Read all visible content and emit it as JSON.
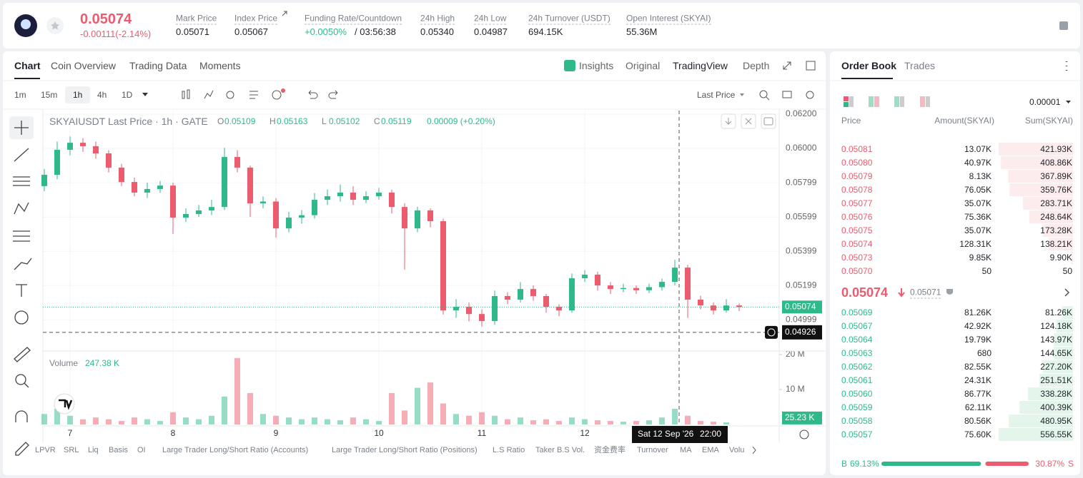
{
  "header": {
    "price": "0.05074",
    "change": "-0.00111(-2.14%)",
    "stats": [
      {
        "label": "Mark Price",
        "value": "0.05071"
      },
      {
        "label": "Index Price",
        "value": "0.05067"
      },
      {
        "label": "Funding Rate/Countdown",
        "value": "+0.0050%",
        "extra": "/ 03:56:38"
      },
      {
        "label": "24h High",
        "value": "0.05340"
      },
      {
        "label": "24h Low",
        "value": "0.04987"
      },
      {
        "label": "24h Turnover (USDT)",
        "value": "694.15K"
      },
      {
        "label": "Open Interest (SKYAI)",
        "value": "55.36M"
      }
    ]
  },
  "chart_tabs": [
    "Chart",
    "Coin Overview",
    "Trading Data",
    "Moments"
  ],
  "view_tabs": [
    "Insights",
    "Original",
    "TradingView",
    "Depth"
  ],
  "intervals": [
    "1m",
    "15m",
    "1h",
    "4h",
    "1D"
  ],
  "price_source": "Last Price",
  "chart_data": {
    "type": "candlestick",
    "title": "SKYAIUSDT Last Price · 1h · GATE",
    "legend": [
      {
        "key": "O",
        "value": "0.05109"
      },
      {
        "key": "H",
        "value": "0.05163"
      },
      {
        "key": "L",
        "value": "0.05102"
      },
      {
        "key": "C",
        "value": "0.05119"
      }
    ],
    "legend_change": "0.00009 (+0.20%)",
    "x": [
      -6,
      -3,
      0,
      3,
      6,
      9,
      12,
      15,
      18,
      21,
      24,
      27,
      30,
      33,
      36,
      39,
      42,
      45,
      48,
      51,
      54,
      57,
      60,
      63,
      66,
      69,
      72,
      75,
      78,
      81,
      84,
      87,
      90,
      93,
      96,
      99,
      102,
      105,
      108,
      111,
      114,
      117,
      120,
      123,
      126,
      129,
      132,
      135,
      138,
      141,
      144,
      147,
      150,
      153,
      156
    ],
    "open": [
      0.0578,
      0.05846,
      0.05992,
      0.06033,
      0.06013,
      0.05971,
      0.05888,
      0.05804,
      0.05742,
      0.05763,
      0.05783,
      0.05596,
      0.05617,
      0.05638,
      0.05658,
      0.0595,
      0.05888,
      0.05679,
      0.0569,
      0.05533,
      0.05596,
      0.0561,
      0.057,
      0.05721,
      0.05742,
      0.057,
      0.05721,
      0.05742,
      0.05658,
      0.05533,
      0.05638,
      0.05575,
      0.05054,
      0.05075,
      0.05033,
      0.04992,
      0.05138,
      0.05117,
      0.05179,
      0.05138,
      0.05075,
      0.05054,
      0.05242,
      0.05263,
      0.052,
      0.05179,
      0.05185,
      0.05172,
      0.0519,
      0.05221,
      0.05304,
      0.05117,
      0.05083,
      0.05054,
      0.05083
    ],
    "high": [
      0.0588,
      0.0604,
      0.0607,
      0.0606,
      0.0604,
      0.0599,
      0.0591,
      0.0583,
      0.058,
      0.0581,
      0.058,
      0.0565,
      0.0567,
      0.057,
      0.06004,
      0.0599,
      0.059,
      0.0572,
      0.0571,
      0.0563,
      0.0564,
      0.0574,
      0.0576,
      0.0579,
      0.0578,
      0.0575,
      0.0577,
      0.0576,
      0.0568,
      0.0566,
      0.0565,
      0.0559,
      0.0512,
      0.051,
      0.0506,
      0.0517,
      0.0516,
      0.0522,
      0.052,
      0.0515,
      0.0509,
      0.0527,
      0.0529,
      0.0528,
      0.0522,
      0.0521,
      0.052,
      0.0521,
      0.0524,
      0.0535,
      0.0532,
      0.0514,
      0.051,
      0.0512,
      0.05095
    ],
    "low": [
      0.0575,
      0.0582,
      0.0596,
      0.0598,
      0.0594,
      0.0586,
      0.0578,
      0.0572,
      0.0571,
      0.0574,
      0.055,
      0.0557,
      0.056,
      0.0561,
      0.0564,
      0.0586,
      0.056,
      0.0565,
      0.0548,
      0.0551,
      0.0556,
      0.0559,
      0.0567,
      0.0569,
      0.0567,
      0.0568,
      0.057,
      0.0562,
      0.05292,
      0.0551,
      0.0554,
      0.0503,
      0.0501,
      0.0499,
      0.0496,
      0.0497,
      0.0509,
      0.051,
      0.0511,
      0.0504,
      0.0502,
      0.0504,
      0.0522,
      0.0517,
      0.0515,
      0.0516,
      0.0515,
      0.05155,
      0.0517,
      0.052,
      0.0501,
      0.0506,
      0.0503,
      0.0504,
      0.0505
    ],
    "close": [
      0.05846,
      0.05992,
      0.06033,
      0.06013,
      0.05971,
      0.05888,
      0.05804,
      0.05742,
      0.05763,
      0.05783,
      0.05596,
      0.05617,
      0.05638,
      0.05658,
      0.0595,
      0.05888,
      0.05679,
      0.0569,
      0.05533,
      0.05596,
      0.0561,
      0.057,
      0.05721,
      0.05742,
      0.057,
      0.05721,
      0.05742,
      0.05658,
      0.05533,
      0.05638,
      0.05575,
      0.05054,
      0.05075,
      0.05033,
      0.04992,
      0.05138,
      0.05117,
      0.05179,
      0.05138,
      0.05075,
      0.05054,
      0.05242,
      0.05263,
      0.052,
      0.05179,
      0.05185,
      0.05172,
      0.0519,
      0.05221,
      0.05304,
      0.05117,
      0.05083,
      0.05054,
      0.05083,
      0.05074
    ],
    "up_color": "#2fb98b",
    "down_color": "#ec5b6e",
    "xlim": [
      -6.33,
      165.33
    ],
    "xticks": [
      {
        "value": 0,
        "label": "7"
      },
      {
        "value": 24,
        "label": "8"
      },
      {
        "value": 48,
        "label": "9"
      },
      {
        "value": 72,
        "label": "10"
      },
      {
        "value": 96,
        "label": "11"
      },
      {
        "value": 120,
        "label": "12"
      }
    ],
    "ylim": [
      0.04817,
      0.06221
    ],
    "yticks": [
      {
        "value": 0.062,
        "label": "0.06200"
      },
      {
        "value": 0.06,
        "label": "0.06000"
      },
      0.05799,
      0.05599,
      0.05399,
      0.05199,
      0.04999
    ],
    "grid": true,
    "last_price": 0.05074,
    "crosshair": {
      "x": 142,
      "y": 0.04926,
      "date": "Sat 12 Sep '26",
      "time": "22:00"
    },
    "volume": {
      "title": "Volume",
      "current": "247.38 K",
      "values": [
        3000000,
        4500000,
        2500000,
        1500000,
        2000000,
        1500000,
        1000000,
        2000000,
        1500000,
        1000000,
        3500000,
        2000000,
        1500000,
        2500000,
        8000000,
        19000000,
        9000000,
        3000000,
        2500000,
        2000000,
        1500000,
        2000000,
        1500000,
        1200000,
        2000000,
        1500000,
        1000000,
        9000000,
        4000000,
        10500000,
        12000000,
        6000000,
        3000000,
        2500000,
        3500000,
        2500000,
        1500000,
        2000000,
        1200000,
        1500000,
        1000000,
        2000000,
        1500000,
        1200000,
        1000000,
        800000,
        1000000,
        1200000,
        2000000,
        4500000,
        2500000,
        1000000,
        800000,
        600000,
        25230
      ],
      "ylim": [
        0,
        20800000
      ],
      "yticks": [
        {
          "value": 10000000,
          "label": "10 M"
        },
        {
          "value": 20000000,
          "label": "20 M"
        }
      ],
      "last_label": "25.23 K"
    }
  },
  "bottom_tools": [
    "LPVR",
    "SRL",
    "Liq",
    "Basis",
    "OI",
    "Large Trader Long/Short Ratio (Accounts)",
    "Large Trader Long/Short Ratio (Positions)",
    "L.S Ratio",
    "Taker B.S Vol.",
    "资金费率",
    "Turnover",
    "MA",
    "EMA",
    "Volu"
  ],
  "order_book": {
    "tabs": [
      "Order Book",
      "Trades"
    ],
    "precision": "0.00001",
    "columns": [
      "Price",
      "Amount(SKYAI)",
      "Sum(SKYAI)"
    ],
    "asks": [
      [
        "0.05081",
        "13.07K",
        "421.93K"
      ],
      [
        "0.05080",
        "40.97K",
        "408.86K"
      ],
      [
        "0.05079",
        "8.13K",
        "367.89K"
      ],
      [
        "0.05078",
        "76.05K",
        "359.76K"
      ],
      [
        "0.05077",
        "35.07K",
        "283.71K"
      ],
      [
        "0.05076",
        "75.36K",
        "248.64K"
      ],
      [
        "0.05075",
        "35.07K",
        "173.28K"
      ],
      [
        "0.05074",
        "128.31K",
        "138.21K"
      ],
      [
        "0.05073",
        "9.85K",
        "9.90K"
      ],
      [
        "0.05070",
        "50",
        "50"
      ]
    ],
    "mid_price": "0.05074",
    "mark_price": "0.05071",
    "bids": [
      [
        "0.05069",
        "81.26K",
        "81.26K"
      ],
      [
        "0.05067",
        "42.92K",
        "124.18K"
      ],
      [
        "0.05064",
        "19.79K",
        "143.97K"
      ],
      [
        "0.05063",
        "680",
        "144.65K"
      ],
      [
        "0.05062",
        "82.55K",
        "227.20K"
      ],
      [
        "0.05061",
        "24.31K",
        "251.51K"
      ],
      [
        "0.05060",
        "86.77K",
        "338.28K"
      ],
      [
        "0.05059",
        "62.11K",
        "400.39K"
      ],
      [
        "0.05058",
        "80.56K",
        "480.95K"
      ],
      [
        "0.05057",
        "75.60K",
        "556.55K"
      ]
    ],
    "ratio": {
      "buy_key": "B",
      "buy": 69.13,
      "buy_label": "69.13%",
      "sell": 30.87,
      "sell_label": "30.87%",
      "sell_key": "S"
    }
  }
}
